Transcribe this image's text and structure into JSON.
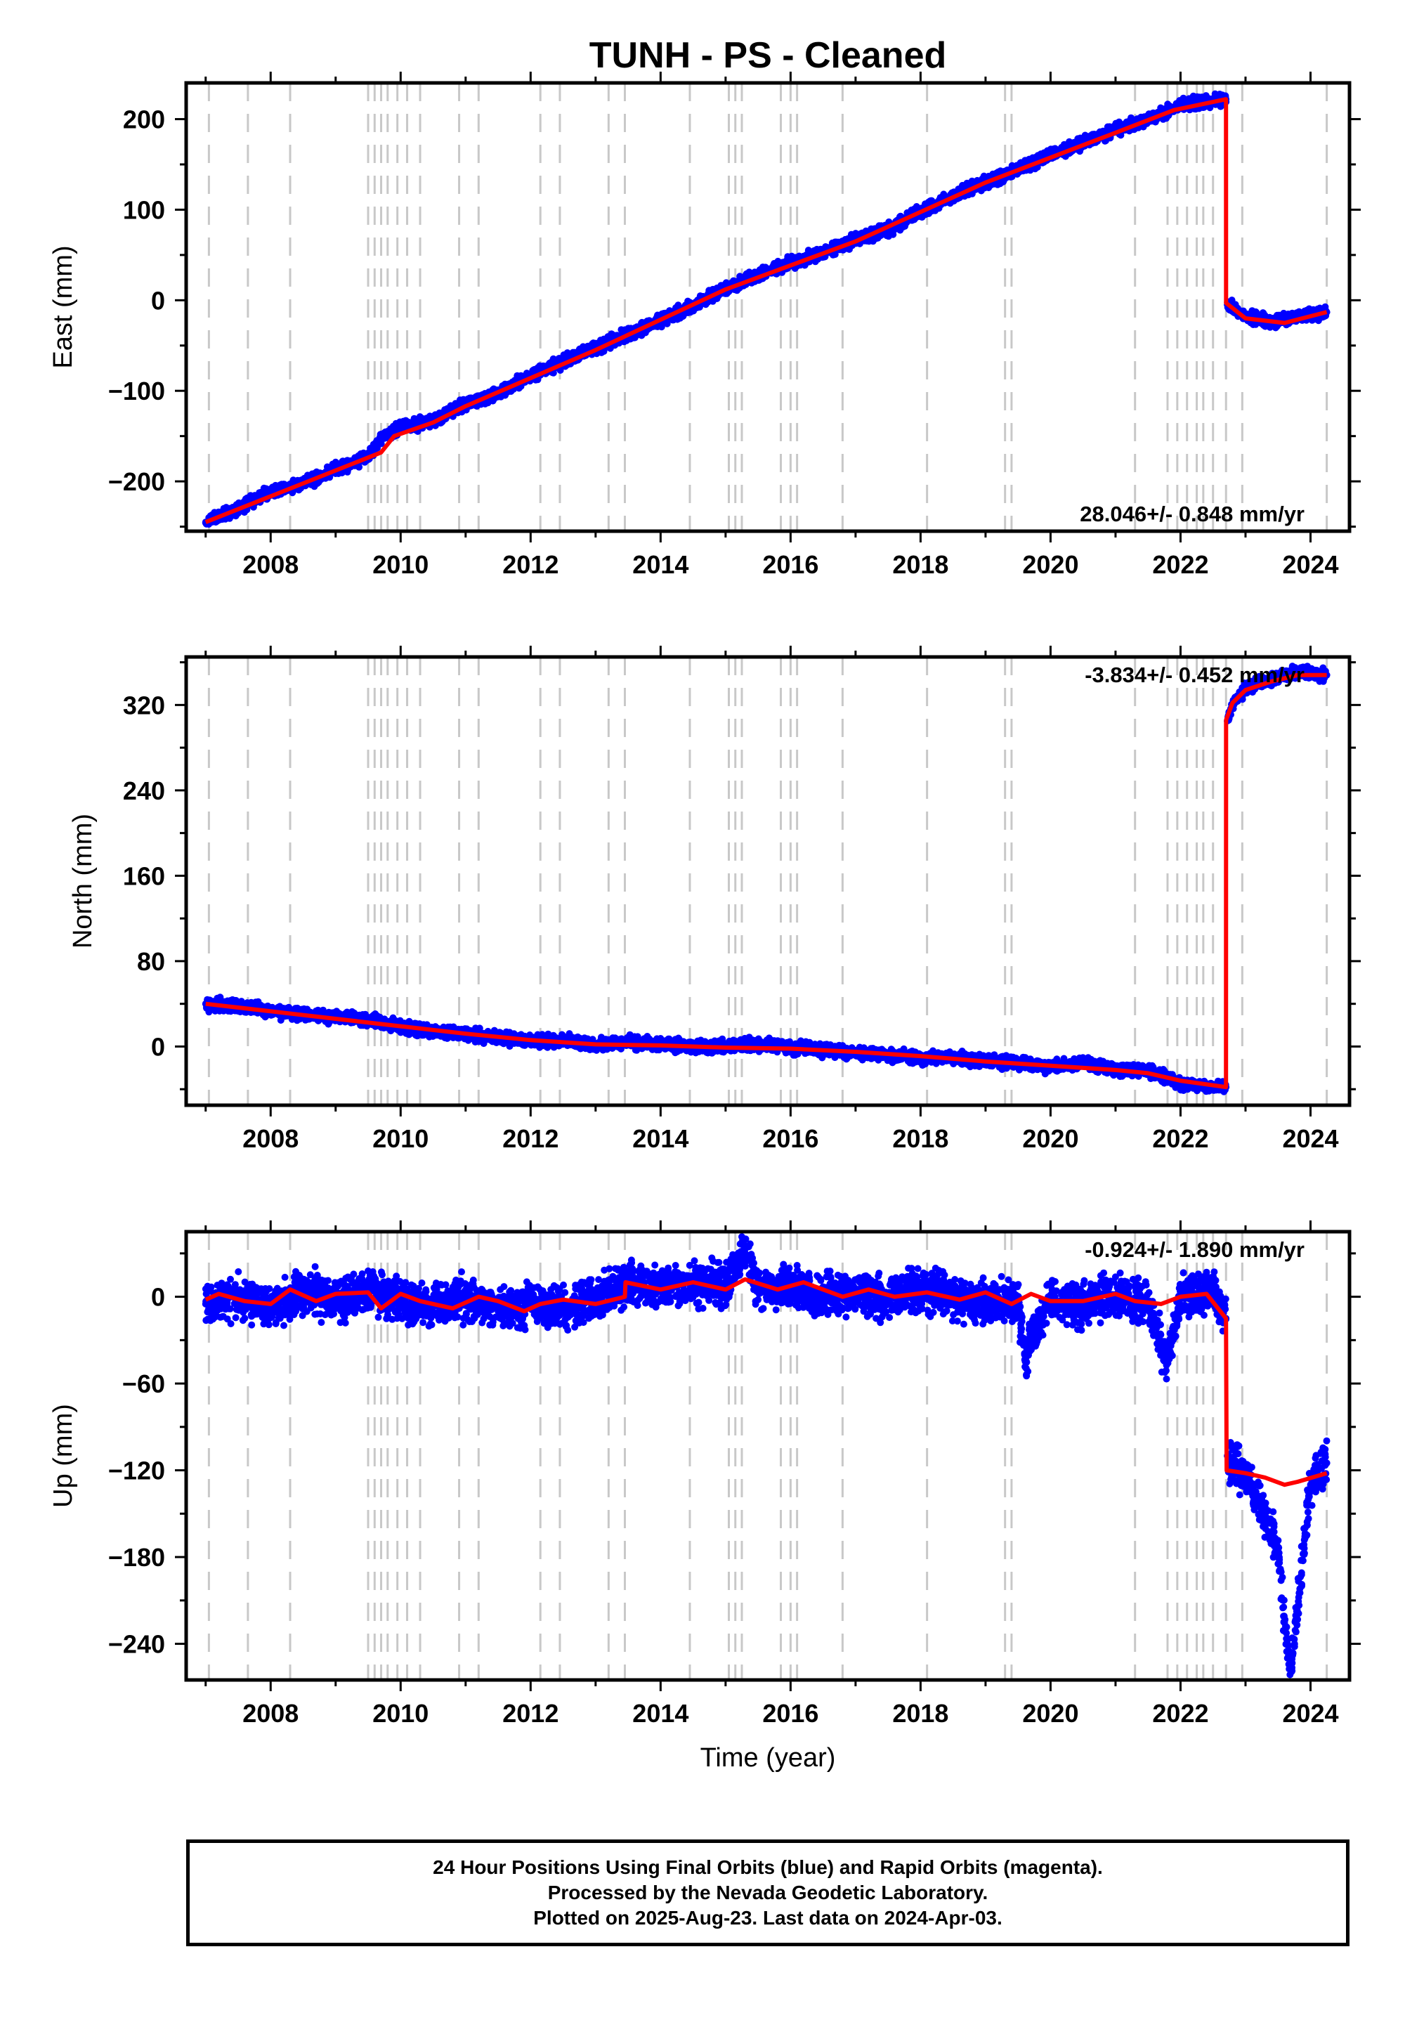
{
  "title": "TUNH  - PS - Cleaned",
  "xlabel": "Time (year)",
  "colors": {
    "final_orbits": "#0000ff",
    "model": "#ff0000",
    "event_lines": "#c8c8c8",
    "frame": "#000000"
  },
  "footer": {
    "line1": "24 Hour Positions Using Final Orbits (blue) and Rapid Orbits (magenta).",
    "line2": "Processed by the Nevada Geodetic Laboratory.",
    "line3": "Plotted on 2025-Aug-23. Last data on 2024-Apr-03."
  },
  "chart_data": [
    {
      "type": "scatter",
      "component": "East",
      "ylabel": "East (mm)",
      "rate_label": "28.046+/- 0.848 mm/yr",
      "xlim": [
        2006.7,
        2024.6
      ],
      "ylim": [
        -255,
        240
      ],
      "xticks": [
        2008,
        2010,
        2012,
        2014,
        2016,
        2018,
        2020,
        2022,
        2024
      ],
      "yticks": [
        -200,
        -100,
        0,
        100,
        200
      ],
      "ytick_labels": [
        "−200",
        "−100",
        "0",
        "100",
        "200"
      ],
      "grid": false,
      "event_lines": [
        2007.05,
        2007.65,
        2008.3,
        2009.5,
        2009.6,
        2009.7,
        2009.8,
        2009.95,
        2010.1,
        2010.3,
        2010.9,
        2011.2,
        2012.15,
        2012.45,
        2013.2,
        2013.45,
        2014.45,
        2015.05,
        2015.15,
        2015.25,
        2015.85,
        2016.0,
        2016.1,
        2016.8,
        2018.1,
        2019.3,
        2019.4,
        2021.3,
        2021.8,
        2021.95,
        2022.1,
        2022.25,
        2022.35,
        2022.5,
        2022.7,
        2022.95,
        2024.25
      ],
      "series": [
        {
          "name": "Final Orbits",
          "style": "points",
          "color": "#0000ff",
          "x": [
            2007.0,
            2007.5,
            2008.0,
            2008.5,
            2009.0,
            2009.5,
            2009.7,
            2010.0,
            2010.5,
            2011.0,
            2011.5,
            2012.0,
            2012.5,
            2013.0,
            2013.5,
            2014.0,
            2014.5,
            2015.0,
            2015.5,
            2016.0,
            2016.5,
            2017.0,
            2017.5,
            2018.0,
            2018.5,
            2019.0,
            2019.5,
            2020.0,
            2020.5,
            2021.0,
            2021.5,
            2022.0,
            2022.5,
            2022.7,
            2022.72,
            2023.0,
            2023.5,
            2023.7,
            2024.0,
            2024.25
          ],
          "y": [
            -245,
            -230,
            -212,
            -202,
            -187,
            -172,
            -152,
            -140,
            -133,
            -115,
            -103,
            -83,
            -68,
            -52,
            -38,
            -22,
            -7,
            13,
            27,
            42,
            52,
            67,
            78,
            98,
            115,
            130,
            145,
            160,
            173,
            188,
            200,
            215,
            220,
            222,
            -5,
            -18,
            -24,
            -20,
            -15,
            -13
          ]
        },
        {
          "name": "Model",
          "style": "line",
          "color": "#ff0000",
          "x": [
            2007.0,
            2009.7,
            2009.9,
            2010.5,
            2011.0,
            2013.0,
            2015.0,
            2017.0,
            2019.0,
            2021.0,
            2021.9,
            2022.7,
            2022.701,
            2023.0,
            2023.6,
            2024.25
          ],
          "y": [
            -245,
            -168,
            -150,
            -135,
            -117,
            -55,
            12,
            65,
            130,
            185,
            210,
            222,
            -3,
            -20,
            -25,
            -13
          ]
        }
      ]
    },
    {
      "type": "scatter",
      "component": "North",
      "ylabel": "North (mm)",
      "rate_label": "-3.834+/- 0.452 mm/yr",
      "xlim": [
        2006.7,
        2024.6
      ],
      "ylim": [
        -55,
        365
      ],
      "xticks": [
        2008,
        2010,
        2012,
        2014,
        2016,
        2018,
        2020,
        2022,
        2024
      ],
      "yticks": [
        0,
        80,
        160,
        240,
        320
      ],
      "ytick_labels": [
        "0",
        "80",
        "160",
        "240",
        "320"
      ],
      "grid": false,
      "event_lines": [
        2007.05,
        2007.65,
        2008.3,
        2009.5,
        2009.6,
        2009.7,
        2009.8,
        2009.95,
        2010.1,
        2010.3,
        2010.9,
        2011.2,
        2012.15,
        2012.45,
        2013.2,
        2013.45,
        2014.45,
        2015.05,
        2015.15,
        2015.25,
        2015.85,
        2016.0,
        2016.1,
        2016.8,
        2018.1,
        2019.3,
        2019.4,
        2021.3,
        2021.8,
        2021.95,
        2022.1,
        2022.25,
        2022.35,
        2022.5,
        2022.7,
        2022.95,
        2024.25
      ],
      "series": [
        {
          "name": "Final Orbits",
          "style": "points",
          "color": "#0000ff",
          "x": [
            2007.0,
            2007.5,
            2008.0,
            2008.5,
            2009.0,
            2009.5,
            2010.0,
            2010.5,
            2011.0,
            2011.5,
            2012.0,
            2012.5,
            2013.0,
            2013.5,
            2014.0,
            2014.5,
            2015.0,
            2015.5,
            2016.0,
            2016.5,
            2017.0,
            2017.5,
            2018.0,
            2018.5,
            2019.0,
            2019.5,
            2020.0,
            2020.5,
            2021.0,
            2021.5,
            2022.0,
            2022.5,
            2022.7,
            2022.72,
            2022.8,
            2023.0,
            2023.3,
            2023.6,
            2023.8,
            2024.0,
            2024.25
          ],
          "y": [
            40,
            38,
            33,
            30,
            27,
            25,
            18,
            14,
            12,
            9,
            5,
            6,
            1,
            4,
            2,
            0,
            0,
            2,
            -1,
            -3,
            -5,
            -8,
            -11,
            -10,
            -14,
            -15,
            -19,
            -15,
            -22,
            -22,
            -35,
            -38,
            -38,
            305,
            320,
            335,
            343,
            348,
            352,
            350,
            348
          ]
        },
        {
          "name": "Model",
          "style": "line",
          "color": "#ff0000",
          "x": [
            2007.0,
            2008.0,
            2009.0,
            2010.0,
            2011.0,
            2012.0,
            2013.0,
            2014.0,
            2015.0,
            2016.0,
            2017.0,
            2018.0,
            2019.0,
            2020.0,
            2021.0,
            2021.5,
            2022.0,
            2022.7,
            2022.701,
            2022.8,
            2023.0,
            2023.4,
            2023.8,
            2024.25
          ],
          "y": [
            40,
            33,
            26,
            19,
            12,
            6,
            2,
            1,
            -1,
            -2,
            -5,
            -9,
            -14,
            -18,
            -22,
            -25,
            -32,
            -38,
            306,
            322,
            334,
            342,
            348,
            348
          ]
        }
      ]
    },
    {
      "type": "scatter",
      "component": "Up",
      "ylabel": "Up (mm)",
      "xlabel": "Time (year)",
      "rate_label": "-0.924+/- 1.890 mm/yr",
      "xlim": [
        2006.7,
        2024.6
      ],
      "ylim": [
        -265,
        45
      ],
      "xticks": [
        2008,
        2010,
        2012,
        2014,
        2016,
        2018,
        2020,
        2022,
        2024
      ],
      "yticks": [
        -240,
        -180,
        -120,
        -60,
        0
      ],
      "ytick_labels": [
        "−240",
        "−180",
        "−120",
        "−60",
        "0"
      ],
      "grid": false,
      "event_lines": [
        2007.05,
        2007.65,
        2008.3,
        2009.5,
        2009.6,
        2009.7,
        2009.8,
        2009.95,
        2010.1,
        2010.3,
        2010.9,
        2011.2,
        2012.15,
        2012.45,
        2013.2,
        2013.45,
        2014.45,
        2015.05,
        2015.15,
        2015.25,
        2015.85,
        2016.0,
        2016.1,
        2016.8,
        2018.1,
        2019.3,
        2019.4,
        2021.3,
        2021.8,
        2021.95,
        2022.1,
        2022.25,
        2022.35,
        2022.5,
        2022.7,
        2022.95,
        2024.25
      ],
      "series": [
        {
          "name": "Final Orbits",
          "style": "points",
          "color": "#0000ff",
          "x": [
            2007.0,
            2007.5,
            2008.0,
            2008.5,
            2009.0,
            2009.5,
            2010.0,
            2010.5,
            2011.0,
            2011.5,
            2012.0,
            2012.5,
            2013.0,
            2013.5,
            2014.0,
            2014.5,
            2015.0,
            2015.3,
            2015.5,
            2016.0,
            2016.5,
            2017.0,
            2017.5,
            2018.0,
            2018.5,
            2019.0,
            2019.5,
            2019.6,
            2020.0,
            2020.5,
            2021.0,
            2021.5,
            2021.8,
            2022.0,
            2022.5,
            2022.7,
            2022.72,
            2023.0,
            2023.3,
            2023.5,
            2023.6,
            2023.7,
            2024.0,
            2024.25
          ],
          "y": [
            -5,
            0,
            -8,
            2,
            -2,
            5,
            -3,
            -5,
            0,
            -10,
            -5,
            -8,
            -3,
            10,
            5,
            10,
            8,
            33,
            5,
            8,
            0,
            5,
            -3,
            5,
            0,
            -5,
            -5,
            -40,
            -3,
            -5,
            0,
            -5,
            -45,
            0,
            5,
            -15,
            -110,
            -125,
            -150,
            -175,
            -225,
            -255,
            -130,
            -115
          ]
        },
        {
          "name": "Model",
          "style": "line",
          "color": "#ff0000",
          "x": [
            2007.0,
            2007.2,
            2007.6,
            2008.0,
            2008.3,
            2008.7,
            2009.0,
            2009.5,
            2009.7,
            2010.0,
            2010.3,
            2010.8,
            2011.2,
            2011.5,
            2011.9,
            2012.15,
            2012.5,
            2013.0,
            2013.45,
            2013.46,
            2014.0,
            2014.5,
            2015.0,
            2015.3,
            2015.8,
            2016.2,
            2016.8,
            2017.2,
            2017.6,
            2018.1,
            2018.6,
            2019.0,
            2019.4,
            2019.7,
            2020.0,
            2020.5,
            2021.0,
            2021.3,
            2021.7,
            2022.0,
            2022.4,
            2022.7,
            2022.71,
            2023.0,
            2023.3,
            2023.6,
            2023.8,
            2024.25
          ],
          "y": [
            -2,
            2,
            -3,
            -5,
            5,
            -3,
            2,
            3,
            -8,
            2,
            -3,
            -8,
            0,
            -3,
            -10,
            -5,
            -2,
            -5,
            0,
            10,
            5,
            10,
            5,
            12,
            5,
            10,
            0,
            5,
            0,
            3,
            -2,
            3,
            -5,
            2,
            -3,
            -3,
            2,
            -3,
            -5,
            0,
            2,
            -15,
            -120,
            -122,
            -125,
            -130,
            -128,
            -122
          ]
        }
      ]
    }
  ]
}
